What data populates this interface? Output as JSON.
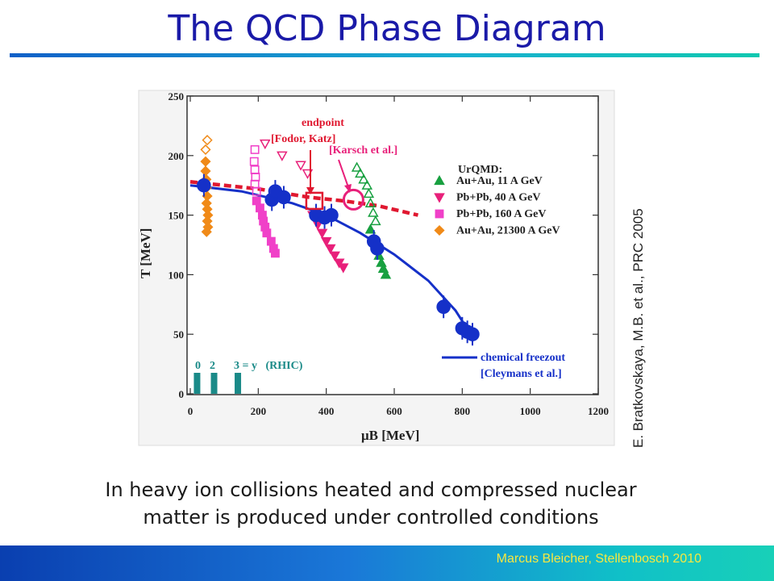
{
  "slide": {
    "title": "The QCD Phase Diagram",
    "caption_line1": "In heavy ion collisions heated and compressed nuclear",
    "caption_line2": "matter is produced under controlled conditions",
    "credit": "E. Bratkovskaya, M.B. et al., PRC 2005",
    "footer": "Marcus Bleicher, Stellenbosch 2010"
  },
  "colors": {
    "title": "#1a1aa8",
    "freezeout": "#1530c8",
    "endpoint": "#e01830",
    "au11": "#18a040",
    "pb40": "#e8207a",
    "pb160": "#f040c8",
    "au21300": "#f08a18",
    "rhic": "#1a8a88",
    "footer_text": "#f7e840"
  },
  "chart_data": {
    "type": "scatter",
    "xlabel": "μB [MeV]",
    "ylabel": "T [MeV]",
    "xlim": [
      0,
      1200
    ],
    "ylim": [
      0,
      250
    ],
    "xticks": [
      "0",
      "200",
      "400",
      "600",
      "800",
      "1000",
      "1200"
    ],
    "yticks": [
      "0",
      "50",
      "100",
      "150",
      "200",
      "250"
    ],
    "annotations": {
      "endpoint": "endpoint",
      "fodor": "[Fodor, Katz]",
      "karsch": "[Karsch et al.]",
      "urqmd": "UrQMD:",
      "freezeout": "chemical freezout",
      "cleymans": "[Cleymans et al.]",
      "rhic_text": "3 = y   (RHIC)",
      "rhic_0": "0",
      "rhic_2": "2"
    },
    "series": [
      {
        "name": "Au+Au, 11 A GeV",
        "marker": "triangle-up",
        "filled": [
          [
            530,
            138
          ],
          [
            540,
            128
          ],
          [
            550,
            122
          ],
          [
            555,
            116
          ],
          [
            562,
            110
          ],
          [
            568,
            105
          ],
          [
            575,
            100
          ]
        ],
        "open": [
          [
            490,
            190
          ],
          [
            500,
            185
          ],
          [
            510,
            180
          ],
          [
            520,
            175
          ],
          [
            525,
            168
          ],
          [
            530,
            160
          ],
          [
            538,
            152
          ],
          [
            545,
            145
          ]
        ]
      },
      {
        "name": "Pb+Pb, 40 A GeV",
        "marker": "triangle-down",
        "filled": [
          [
            360,
            150
          ],
          [
            375,
            142
          ],
          [
            388,
            135
          ],
          [
            400,
            128
          ],
          [
            412,
            122
          ],
          [
            425,
            116
          ],
          [
            438,
            110
          ],
          [
            450,
            106
          ]
        ],
        "open": [
          [
            220,
            210
          ],
          [
            270,
            200
          ],
          [
            325,
            192
          ],
          [
            345,
            185
          ]
        ]
      },
      {
        "name": "Pb+Pb, 160 A GeV",
        "marker": "square",
        "filled": [
          [
            195,
            162
          ],
          [
            205,
            156
          ],
          [
            212,
            150
          ],
          [
            215,
            145
          ],
          [
            220,
            140
          ],
          [
            225,
            135
          ],
          [
            238,
            128
          ],
          [
            245,
            122
          ],
          [
            250,
            118
          ]
        ],
        "open": [
          [
            190,
            205
          ],
          [
            188,
            195
          ],
          [
            190,
            188
          ],
          [
            192,
            182
          ],
          [
            190,
            176
          ],
          [
            195,
            170
          ]
        ]
      },
      {
        "name": "Au+Au, 21300 A GeV",
        "marker": "diamond",
        "filled": [
          [
            45,
            195
          ],
          [
            45,
            187
          ],
          [
            47,
            180
          ],
          [
            48,
            173
          ],
          [
            50,
            166
          ],
          [
            48,
            160
          ],
          [
            50,
            155
          ],
          [
            52,
            150
          ],
          [
            50,
            145
          ],
          [
            52,
            140
          ],
          [
            48,
            136
          ]
        ],
        "open": [
          [
            50,
            213
          ],
          [
            45,
            205
          ]
        ]
      },
      {
        "name": "chemical freezout",
        "marker": "circle",
        "points": [
          [
            40,
            175
          ],
          [
            240,
            163
          ],
          [
            250,
            170
          ],
          [
            275,
            165
          ],
          [
            370,
            150
          ],
          [
            395,
            148
          ],
          [
            415,
            150
          ],
          [
            540,
            128
          ],
          [
            550,
            122
          ],
          [
            745,
            73
          ],
          [
            800,
            55
          ],
          [
            815,
            52
          ],
          [
            830,
            50
          ]
        ]
      }
    ],
    "freezeout_curve": [
      [
        0,
        175
      ],
      [
        150,
        170
      ],
      [
        300,
        160
      ],
      [
        400,
        150
      ],
      [
        500,
        135
      ],
      [
        600,
        117
      ],
      [
        700,
        95
      ],
      [
        780,
        70
      ],
      [
        820,
        52
      ]
    ],
    "critical_line": [
      [
        0,
        178
      ],
      [
        200,
        172
      ],
      [
        350,
        165
      ],
      [
        450,
        162
      ],
      [
        550,
        158
      ],
      [
        670,
        150
      ]
    ],
    "endpoints": {
      "fodor": [
        365,
        162
      ],
      "karsch": [
        480,
        163
      ]
    },
    "rhic_y": [
      0,
      2,
      3
    ]
  }
}
